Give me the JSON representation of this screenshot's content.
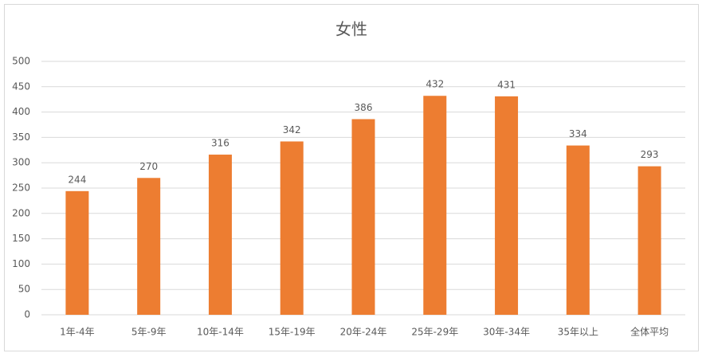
{
  "chart_data": {
    "type": "bar",
    "title": "女性",
    "categories": [
      "1年-4年",
      "5年-9年",
      "10年-14年",
      "15年-19年",
      "20年-24年",
      "25年-29年",
      "30年-34年",
      "35年以上",
      "全体平均"
    ],
    "values": [
      244,
      270,
      316,
      342,
      386,
      432,
      431,
      334,
      293
    ],
    "color": "#ed7d31",
    "ylim": [
      0,
      500
    ],
    "yticks": [
      0,
      50,
      100,
      150,
      200,
      250,
      300,
      350,
      400,
      450,
      500
    ],
    "grid": true
  }
}
